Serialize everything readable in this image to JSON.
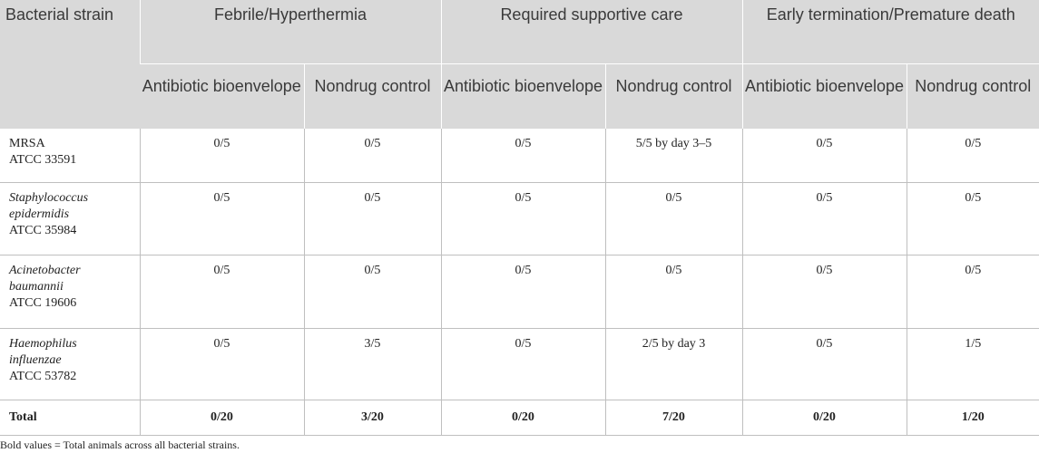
{
  "table": {
    "strain_header": "Bacterial strain",
    "groups": [
      "Febrile/Hyperthermia",
      "Required supportive care",
      "Early termination/Premature death"
    ],
    "subheaders": [
      "Antibiotic bioenvelope",
      "Nondrug control",
      "Antibiotic bioenvelope",
      "Nondrug control",
      "Antibiotic bioenvelope",
      "Nondrug control"
    ],
    "rows": [
      {
        "strain": [
          {
            "text": "MRSA",
            "italic": false
          },
          {
            "text": "ATCC 33591",
            "italic": false
          }
        ],
        "values": [
          "0/5",
          "0/5",
          "0/5",
          "5/5 by day 3–5",
          "0/5",
          "0/5"
        ]
      },
      {
        "strain": [
          {
            "text": "Staphylococcus",
            "italic": true
          },
          {
            "text": "epidermidis",
            "italic": true
          },
          {
            "text": "ATCC 35984",
            "italic": false
          }
        ],
        "values": [
          "0/5",
          "0/5",
          "0/5",
          "0/5",
          "0/5",
          "0/5"
        ]
      },
      {
        "strain": [
          {
            "text": "Acinetobacter",
            "italic": true
          },
          {
            "text": "baumannii",
            "italic": true
          },
          {
            "text": "ATCC 19606",
            "italic": false
          }
        ],
        "values": [
          "0/5",
          "0/5",
          "0/5",
          "0/5",
          "0/5",
          "0/5"
        ]
      },
      {
        "strain": [
          {
            "text": "Haemophilus",
            "italic": true
          },
          {
            "text": "influenzae",
            "italic": true
          },
          {
            "text": "ATCC 53782",
            "italic": false
          }
        ],
        "values": [
          "0/5",
          "3/5",
          "0/5",
          "2/5 by day 3",
          "0/5",
          "1/5"
        ]
      }
    ],
    "total": {
      "label": "Total",
      "values": [
        "0/20",
        "3/20",
        "0/20",
        "7/20",
        "0/20",
        "1/20"
      ]
    }
  },
  "footnote": "Bold values = Total animals across all bacterial strains."
}
